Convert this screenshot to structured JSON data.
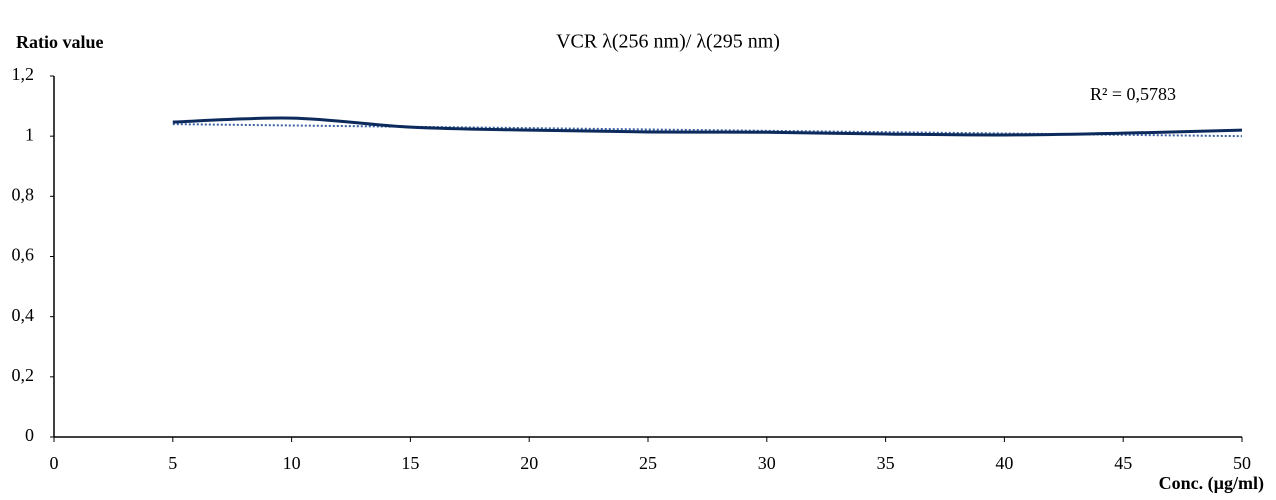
{
  "chart_data": {
    "type": "line",
    "title": "VCR λ(256 nm)/ λ(295 nm)",
    "y_label": "Ratio value",
    "x_label": "Conc. (µg/ml)",
    "x": [
      5,
      10,
      15,
      20,
      25,
      30,
      35,
      40,
      45,
      50
    ],
    "series": [
      {
        "color": "#0d2a5c",
        "values": [
          1.047,
          1.06,
          1.03,
          1.02,
          1.014,
          1.013,
          1.007,
          1.004,
          1.01,
          1.02
        ]
      }
    ],
    "trendline": {
      "x": [
        5,
        50
      ],
      "values": [
        1.04,
        1.0
      ],
      "color": "#3a62a0",
      "annotation": "R² = 0,5783"
    },
    "xlim": [
      0,
      50
    ],
    "xticks": [
      0,
      5,
      10,
      15,
      20,
      25,
      30,
      35,
      40,
      45,
      50
    ],
    "ylim": [
      0,
      1.2
    ],
    "yticks": [
      0,
      {
        "value": 0.2,
        "label": "0,2"
      },
      {
        "value": 0.4,
        "label": "0,4"
      },
      {
        "value": 0.6,
        "label": "0,6"
      },
      {
        "value": 0.8,
        "label": "0,8"
      },
      1,
      {
        "value": 1.2,
        "label": "1,2"
      }
    ],
    "grid": false
  }
}
